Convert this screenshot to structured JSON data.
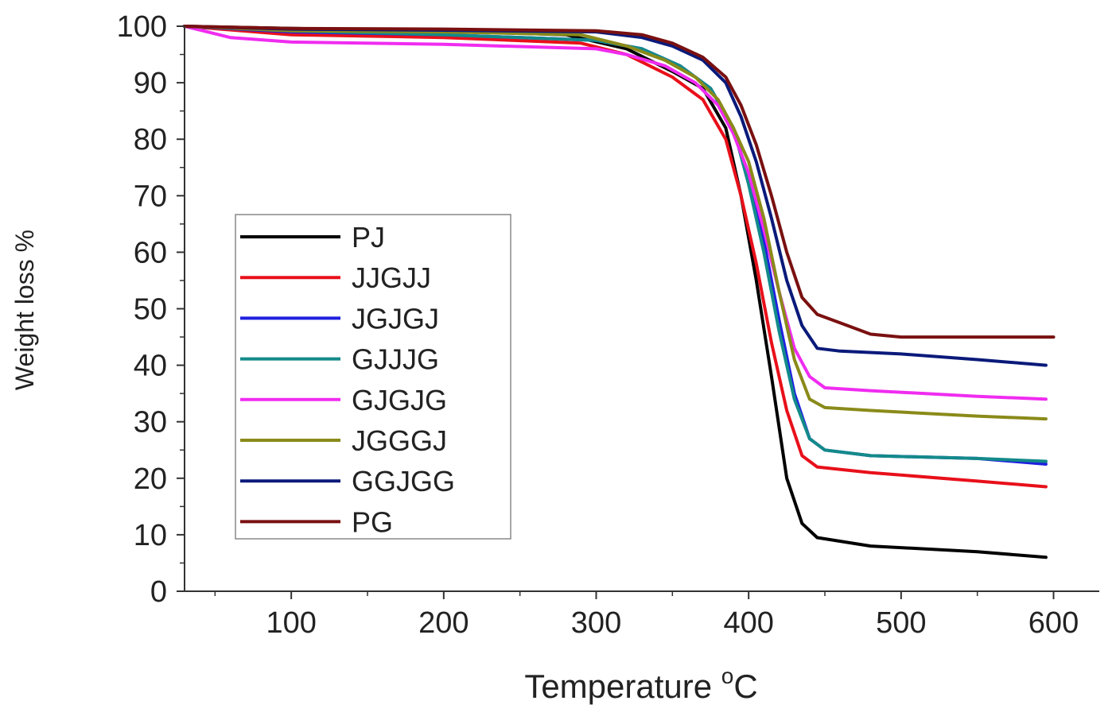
{
  "chart_data": {
    "type": "line",
    "title": "",
    "xlabel": "Temperature",
    "xlabel_unit_sup": "o",
    "xlabel_unit": "C",
    "ylabel": "Weight loss %",
    "xlim": [
      30,
      630
    ],
    "ylim": [
      0,
      100
    ],
    "xticks": [
      100,
      200,
      300,
      400,
      500,
      600
    ],
    "yticks": [
      0,
      10,
      20,
      30,
      40,
      50,
      60,
      70,
      80,
      90,
      100
    ],
    "grid": false,
    "legend_position": "center-left",
    "series": [
      {
        "name": "PJ",
        "color": "#000000",
        "points": [
          [
            30,
            100
          ],
          [
            100,
            99.6
          ],
          [
            200,
            99.2
          ],
          [
            280,
            98.5
          ],
          [
            320,
            96
          ],
          [
            350,
            92
          ],
          [
            370,
            89
          ],
          [
            385,
            82
          ],
          [
            395,
            70
          ],
          [
            405,
            55
          ],
          [
            415,
            38
          ],
          [
            425,
            20
          ],
          [
            435,
            12
          ],
          [
            445,
            9.5
          ],
          [
            480,
            8
          ],
          [
            550,
            7
          ],
          [
            595,
            6
          ]
        ]
      },
      {
        "name": "JJGJJ",
        "color": "#e8101a",
        "points": [
          [
            30,
            100
          ],
          [
            100,
            98.5
          ],
          [
            200,
            98
          ],
          [
            290,
            97
          ],
          [
            320,
            95
          ],
          [
            350,
            91
          ],
          [
            370,
            87
          ],
          [
            385,
            80
          ],
          [
            395,
            70
          ],
          [
            405,
            58
          ],
          [
            415,
            44
          ],
          [
            425,
            32
          ],
          [
            435,
            24
          ],
          [
            445,
            22
          ],
          [
            480,
            21
          ],
          [
            550,
            19.5
          ],
          [
            595,
            18.5
          ]
        ]
      },
      {
        "name": "JGJGJ",
        "color": "#1f1fe0",
        "points": [
          [
            30,
            100
          ],
          [
            100,
            99
          ],
          [
            200,
            98.5
          ],
          [
            300,
            97.5
          ],
          [
            330,
            96
          ],
          [
            355,
            93
          ],
          [
            375,
            89
          ],
          [
            390,
            82
          ],
          [
            400,
            73
          ],
          [
            410,
            62
          ],
          [
            420,
            48
          ],
          [
            430,
            35
          ],
          [
            440,
            27
          ],
          [
            450,
            25
          ],
          [
            480,
            24
          ],
          [
            550,
            23.5
          ],
          [
            595,
            22.5
          ]
        ]
      },
      {
        "name": "GJJJG",
        "color": "#138a8a",
        "points": [
          [
            30,
            100
          ],
          [
            100,
            99.2
          ],
          [
            200,
            98.5
          ],
          [
            300,
            97.5
          ],
          [
            330,
            96
          ],
          [
            355,
            93
          ],
          [
            375,
            89
          ],
          [
            390,
            82
          ],
          [
            400,
            72
          ],
          [
            410,
            60
          ],
          [
            420,
            46
          ],
          [
            430,
            34
          ],
          [
            440,
            27
          ],
          [
            450,
            25
          ],
          [
            480,
            24
          ],
          [
            550,
            23.5
          ],
          [
            595,
            23
          ]
        ]
      },
      {
        "name": "GJGJG",
        "color": "#f02cf0",
        "points": [
          [
            30,
            100
          ],
          [
            60,
            98
          ],
          [
            100,
            97.2
          ],
          [
            200,
            96.8
          ],
          [
            300,
            96
          ],
          [
            320,
            95
          ],
          [
            345,
            93
          ],
          [
            365,
            90
          ],
          [
            380,
            86
          ],
          [
            390,
            81
          ],
          [
            400,
            74
          ],
          [
            410,
            64
          ],
          [
            420,
            53
          ],
          [
            430,
            43
          ],
          [
            440,
            38
          ],
          [
            450,
            36
          ],
          [
            480,
            35.5
          ],
          [
            550,
            34.5
          ],
          [
            595,
            34
          ]
        ]
      },
      {
        "name": "JGGGJ",
        "color": "#8a8a1a",
        "points": [
          [
            30,
            100
          ],
          [
            100,
            99.2
          ],
          [
            200,
            99
          ],
          [
            290,
            98.5
          ],
          [
            320,
            96.5
          ],
          [
            345,
            94
          ],
          [
            365,
            91
          ],
          [
            380,
            87
          ],
          [
            390,
            82
          ],
          [
            400,
            76
          ],
          [
            410,
            66
          ],
          [
            420,
            53
          ],
          [
            430,
            41
          ],
          [
            440,
            34
          ],
          [
            450,
            32.5
          ],
          [
            480,
            32
          ],
          [
            550,
            31
          ],
          [
            595,
            30.5
          ]
        ]
      },
      {
        "name": "GGJGG",
        "color": "#0a1a7a",
        "points": [
          [
            30,
            100
          ],
          [
            100,
            99.5
          ],
          [
            200,
            99.3
          ],
          [
            300,
            99
          ],
          [
            330,
            98
          ],
          [
            350,
            96.5
          ],
          [
            370,
            94
          ],
          [
            385,
            90
          ],
          [
            395,
            84
          ],
          [
            405,
            76
          ],
          [
            415,
            66
          ],
          [
            425,
            55
          ],
          [
            435,
            47
          ],
          [
            445,
            43
          ],
          [
            460,
            42.5
          ],
          [
            500,
            42
          ],
          [
            550,
            41
          ],
          [
            595,
            40
          ]
        ]
      },
      {
        "name": "PG",
        "color": "#7a1010",
        "points": [
          [
            30,
            100
          ],
          [
            100,
            99.6
          ],
          [
            200,
            99.5
          ],
          [
            300,
            99.2
          ],
          [
            330,
            98.5
          ],
          [
            350,
            97
          ],
          [
            370,
            94.5
          ],
          [
            385,
            91
          ],
          [
            395,
            86
          ],
          [
            405,
            79
          ],
          [
            415,
            70
          ],
          [
            425,
            60
          ],
          [
            435,
            52
          ],
          [
            445,
            49
          ],
          [
            460,
            47.5
          ],
          [
            480,
            45.5
          ],
          [
            500,
            45
          ],
          [
            550,
            45
          ],
          [
            600,
            45
          ]
        ]
      }
    ]
  }
}
